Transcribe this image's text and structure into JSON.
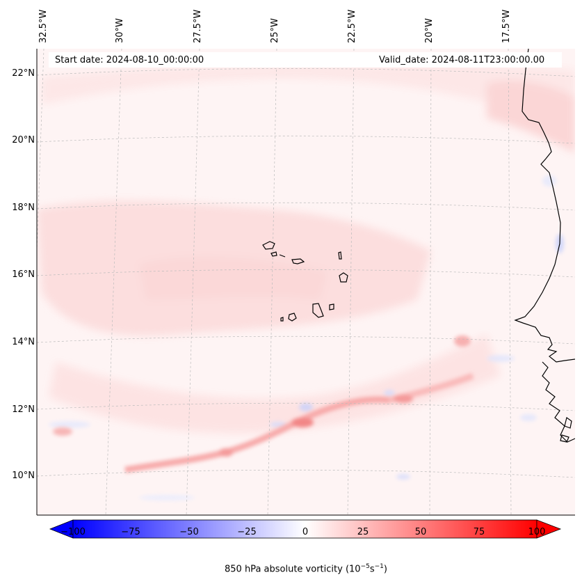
{
  "map": {
    "lon_labels": [
      "32.5°W",
      "30°W",
      "27.5°W",
      "25°W",
      "22.5°W",
      "20°W",
      "17.5°W"
    ],
    "lat_labels": [
      "22°N",
      "20°N",
      "18°N",
      "16°N",
      "14°N",
      "12°N",
      "10°N"
    ],
    "start_date": "Start date: 2024-08-10_00:00:00",
    "valid_date": "Valid_date: 2024-08-11T23:00:00.00",
    "projection_grid": "dashed graticule",
    "coastline_color": "#000000"
  },
  "colorbar": {
    "ticks": [
      "−100",
      "−75",
      "−50",
      "−25",
      "0",
      "25",
      "50",
      "75",
      "100"
    ],
    "title_main": "850 hPa absolute vorticity (10",
    "title_exp1": "−5",
    "title_mid": "s",
    "title_exp2": "−1",
    "title_end": ")",
    "min_color": "#0000ff",
    "mid_color": "#ffffff",
    "max_color": "#ff0000",
    "range": [
      -100,
      100
    ],
    "extend": "both"
  }
}
